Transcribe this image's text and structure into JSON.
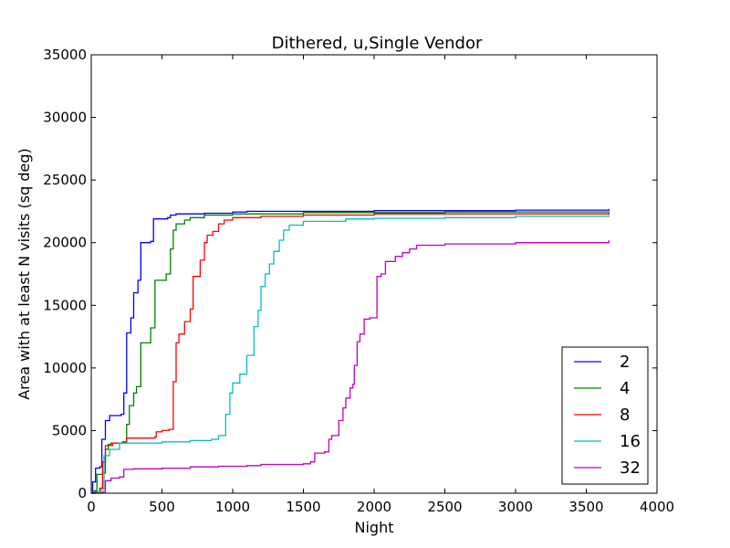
{
  "chart_data": {
    "type": "line",
    "title": "Dithered, u,Single Vendor",
    "xlabel": "Night",
    "ylabel": "Area with at least N visits (sq deg)",
    "xlim": [
      0,
      4000
    ],
    "ylim": [
      0,
      35000
    ],
    "xticks": [
      0,
      500,
      1000,
      1500,
      2000,
      2500,
      3000,
      3500,
      4000
    ],
    "yticks": [
      0,
      5000,
      10000,
      15000,
      20000,
      25000,
      30000,
      35000
    ],
    "grid": false,
    "legend_position": "lower-right",
    "step": true,
    "series": [
      {
        "name": "2",
        "color": "#0000ff",
        "points": [
          [
            0,
            0
          ],
          [
            10,
            900
          ],
          [
            30,
            2000
          ],
          [
            60,
            2100
          ],
          [
            75,
            4300
          ],
          [
            100,
            5800
          ],
          [
            130,
            6200
          ],
          [
            210,
            6300
          ],
          [
            230,
            8000
          ],
          [
            250,
            12800
          ],
          [
            280,
            14000
          ],
          [
            300,
            16000
          ],
          [
            330,
            17000
          ],
          [
            350,
            20000
          ],
          [
            420,
            20100
          ],
          [
            440,
            21900
          ],
          [
            540,
            22000
          ],
          [
            560,
            22200
          ],
          [
            600,
            22300
          ],
          [
            800,
            22350
          ],
          [
            1000,
            22450
          ],
          [
            1100,
            22500
          ],
          [
            2000,
            22550
          ],
          [
            3000,
            22600
          ],
          [
            3660,
            22700
          ]
        ]
      },
      {
        "name": "4",
        "color": "#008000",
        "points": [
          [
            0,
            0
          ],
          [
            20,
            200
          ],
          [
            40,
            1500
          ],
          [
            80,
            1600
          ],
          [
            100,
            3500
          ],
          [
            120,
            3900
          ],
          [
            140,
            4000
          ],
          [
            220,
            4100
          ],
          [
            250,
            5500
          ],
          [
            270,
            7000
          ],
          [
            300,
            8000
          ],
          [
            320,
            8500
          ],
          [
            350,
            12000
          ],
          [
            420,
            13200
          ],
          [
            450,
            17000
          ],
          [
            530,
            17500
          ],
          [
            560,
            19500
          ],
          [
            580,
            21000
          ],
          [
            600,
            21500
          ],
          [
            660,
            21800
          ],
          [
            700,
            22000
          ],
          [
            800,
            22200
          ],
          [
            1000,
            22300
          ],
          [
            1500,
            22400
          ],
          [
            2500,
            22450
          ],
          [
            3660,
            22500
          ]
        ]
      },
      {
        "name": "8",
        "color": "#ff0000",
        "points": [
          [
            0,
            0
          ],
          [
            30,
            100
          ],
          [
            60,
            400
          ],
          [
            80,
            2500
          ],
          [
            100,
            3800
          ],
          [
            150,
            4000
          ],
          [
            250,
            4400
          ],
          [
            450,
            4500
          ],
          [
            460,
            4900
          ],
          [
            500,
            5000
          ],
          [
            550,
            5100
          ],
          [
            580,
            8900
          ],
          [
            600,
            12000
          ],
          [
            620,
            12700
          ],
          [
            660,
            13700
          ],
          [
            700,
            14700
          ],
          [
            720,
            17300
          ],
          [
            770,
            18600
          ],
          [
            800,
            20000
          ],
          [
            820,
            20600
          ],
          [
            860,
            20900
          ],
          [
            900,
            21500
          ],
          [
            940,
            21800
          ],
          [
            1000,
            22000
          ],
          [
            1200,
            22100
          ],
          [
            1500,
            22200
          ],
          [
            2000,
            22300
          ],
          [
            3660,
            22400
          ]
        ]
      },
      {
        "name": "16",
        "color": "#00bfbf",
        "points": [
          [
            0,
            0
          ],
          [
            40,
            100
          ],
          [
            70,
            300
          ],
          [
            90,
            3000
          ],
          [
            130,
            3500
          ],
          [
            200,
            4000
          ],
          [
            500,
            4100
          ],
          [
            700,
            4200
          ],
          [
            850,
            4300
          ],
          [
            900,
            4600
          ],
          [
            950,
            6300
          ],
          [
            980,
            8000
          ],
          [
            1000,
            8800
          ],
          [
            1050,
            9500
          ],
          [
            1100,
            11000
          ],
          [
            1150,
            13300
          ],
          [
            1180,
            14600
          ],
          [
            1200,
            16500
          ],
          [
            1230,
            17500
          ],
          [
            1260,
            18300
          ],
          [
            1290,
            19300
          ],
          [
            1330,
            20200
          ],
          [
            1360,
            21000
          ],
          [
            1400,
            21400
          ],
          [
            1500,
            21700
          ],
          [
            1800,
            21900
          ],
          [
            2000,
            21950
          ],
          [
            2500,
            22000
          ],
          [
            3000,
            22100
          ],
          [
            3660,
            22200
          ]
        ]
      },
      {
        "name": "32",
        "color": "#bf00bf",
        "points": [
          [
            0,
            0
          ],
          [
            80,
            100
          ],
          [
            100,
            1000
          ],
          [
            140,
            1200
          ],
          [
            200,
            1300
          ],
          [
            230,
            1900
          ],
          [
            300,
            1950
          ],
          [
            500,
            2000
          ],
          [
            700,
            2100
          ],
          [
            900,
            2150
          ],
          [
            1100,
            2200
          ],
          [
            1200,
            2300
          ],
          [
            1500,
            2350
          ],
          [
            1550,
            2500
          ],
          [
            1580,
            3200
          ],
          [
            1650,
            3300
          ],
          [
            1680,
            4300
          ],
          [
            1700,
            4600
          ],
          [
            1750,
            5800
          ],
          [
            1780,
            6800
          ],
          [
            1800,
            7600
          ],
          [
            1830,
            8400
          ],
          [
            1850,
            8700
          ],
          [
            1860,
            10200
          ],
          [
            1880,
            12100
          ],
          [
            1900,
            12700
          ],
          [
            1930,
            13900
          ],
          [
            1970,
            14000
          ],
          [
            2020,
            17300
          ],
          [
            2050,
            17500
          ],
          [
            2080,
            18500
          ],
          [
            2150,
            18900
          ],
          [
            2200,
            19200
          ],
          [
            2250,
            19500
          ],
          [
            2300,
            19800
          ],
          [
            2500,
            19900
          ],
          [
            3000,
            20000
          ],
          [
            3660,
            20200
          ]
        ]
      }
    ]
  }
}
